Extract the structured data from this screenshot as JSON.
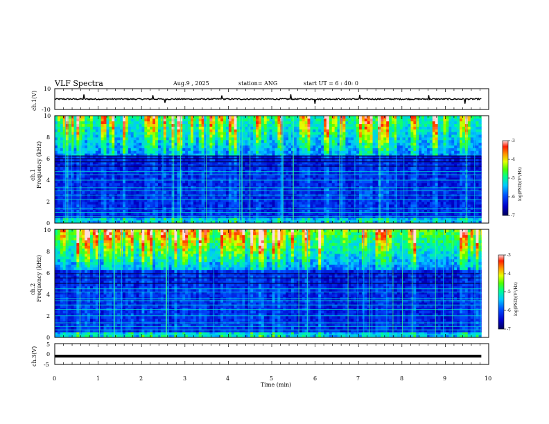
{
  "header": {
    "title": "VLF Spectra",
    "date": "Aug.9 , 2025",
    "station": "station= ANG",
    "start_ut": "start UT = 6 : 40: 0"
  },
  "colors": {
    "background": "#ffffff",
    "axis": "#000000",
    "trace": "#000000"
  },
  "chart_data": [
    {
      "type": "line",
      "name": "ch1-waveform",
      "ylabel": "ch.1(V)",
      "ylim": [
        -10,
        10
      ],
      "yticks": [
        "10",
        "-10"
      ],
      "xlim": [
        0,
        10
      ],
      "baseline": 0,
      "max_time": 9.83
    },
    {
      "type": "heatmap",
      "name": "ch1-spectrogram",
      "ylabel_line1": "ch.1",
      "ylabel_line2": "Frequency (kHz)",
      "ylim": [
        0,
        10
      ],
      "yticks": [
        "0",
        "2",
        "4",
        "6",
        "8",
        "10"
      ],
      "xlim": [
        0,
        10
      ],
      "data_tmax": 9.83,
      "colorbar": {
        "label": "log(PSD)(V²/Hz)",
        "range": [
          -7,
          -3
        ],
        "ticks": [
          "-7",
          "-6",
          "-5",
          "-4",
          "-3"
        ]
      },
      "strong_lines_khz": [
        0.25,
        0.6,
        1.0,
        1.35,
        2.2,
        2.6,
        3.0,
        3.3,
        4.0,
        4.5,
        4.8
      ],
      "dark_lines_khz": [
        5.3,
        5.7,
        6.0,
        6.25
      ],
      "activity": 0.55
    },
    {
      "type": "heatmap",
      "name": "ch2-spectrogram",
      "ylabel_line1": "ch.2",
      "ylabel_line2": "Frequency (kHz)",
      "ylim": [
        0,
        10
      ],
      "yticks": [
        "0",
        "2",
        "4",
        "6",
        "8",
        "10"
      ],
      "xlim": [
        0,
        10
      ],
      "data_tmax": 9.83,
      "colorbar": {
        "label": "log(PSD)(V²/Hz)",
        "range": [
          -7,
          -3
        ],
        "ticks": [
          "-7",
          "-6",
          "-5",
          "-4",
          "-3"
        ]
      },
      "strong_lines_khz": [
        0.3,
        0.7,
        1.0,
        1.35,
        2.0,
        2.6,
        3.0,
        3.4,
        3.6,
        4.2,
        4.5
      ],
      "dark_lines_khz": [
        5.0,
        5.5,
        5.9
      ],
      "activity": 0.85
    },
    {
      "type": "line",
      "name": "ch3-waveform",
      "ylabel": "ch.3(V)",
      "ylim": [
        -5,
        5
      ],
      "yticks": [
        "5",
        "0",
        "-5"
      ],
      "xlim": [
        0,
        10
      ],
      "level": -1,
      "max_time": 9.83
    }
  ],
  "x_axis": {
    "label": "Time (min)",
    "ticks": [
      "0",
      "1",
      "2",
      "3",
      "4",
      "5",
      "6",
      "7",
      "8",
      "9",
      "10"
    ]
  }
}
